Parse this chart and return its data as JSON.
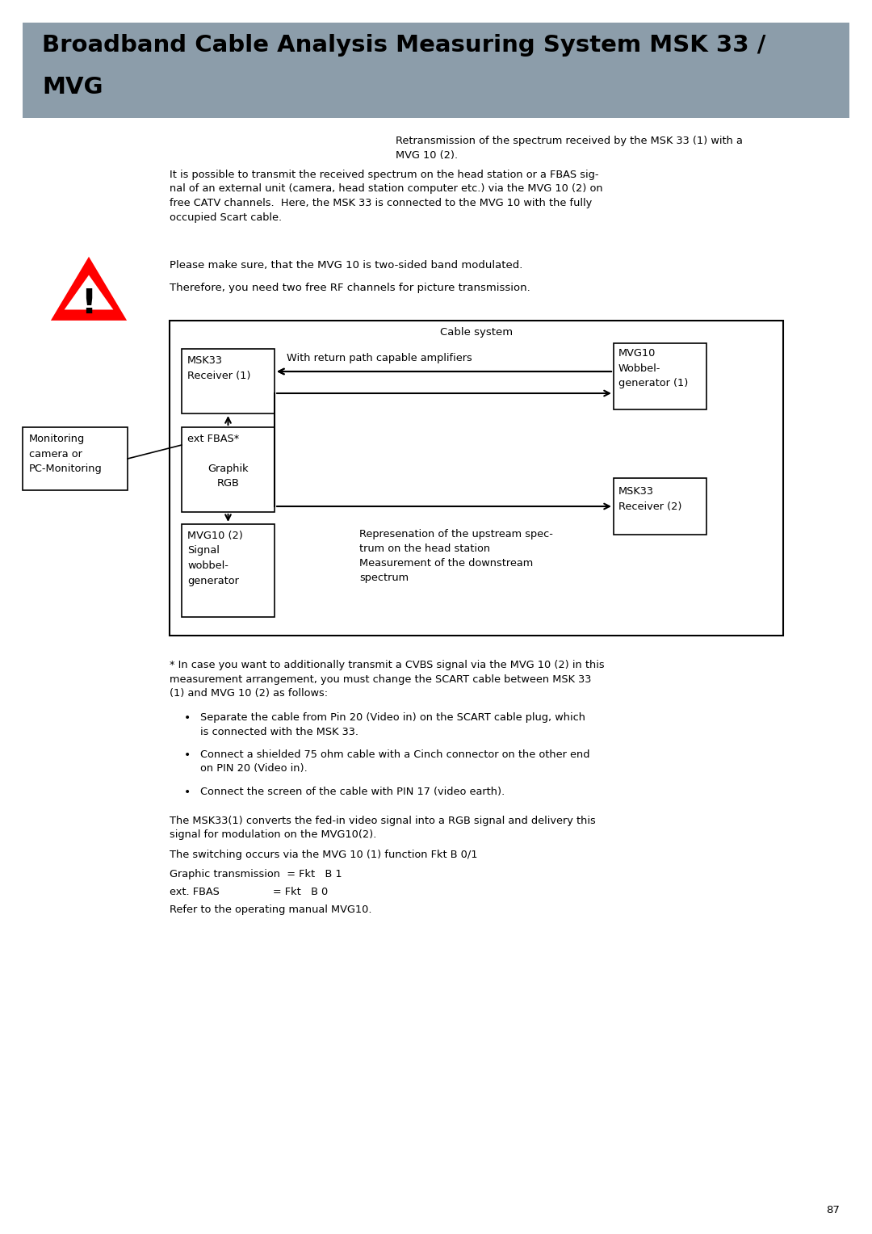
{
  "title_line1": "Broadband Cable Analysis Measuring System MSK 33 /",
  "title_line2": "MVG",
  "title_bg": "#8c9daa",
  "page_bg": "#ffffff",
  "para1": "Retransmission of the spectrum received by the MSK 33 (1) with a\nMVG 10 (2).",
  "para2": "It is possible to transmit the received spectrum on the head station or a FBAS sig-\nnal of an external unit (camera, head station computer etc.) via the MVG 10 (2) on\nfree CATV channels.  Here, the MSK 33 is connected to the MVG 10 with the fully\noccupied Scart cable.",
  "warning_text1": "Please make sure, that the MVG 10 is two-sided band modulated.",
  "warning_text2": "Therefore, you need two free RF channels for picture transmission.",
  "diagram_title": "Cable system",
  "diagram_subtitle": "With return path capable amplifiers",
  "box_msk33_1": "MSK33\nReceiver (1)",
  "box_mvg10_1": "MVG10\nWobbel-\ngenerator (1)",
  "box_ext_fbas": "ext FBAS*",
  "box_graphik": "Graphik\nRGB",
  "box_mvg10_2": "MVG10 (2)\nSignal\nwobbel-\ngenerator",
  "box_msk33_2": "MSK33\nReceiver (2)",
  "box_monitoring": "Monitoring\ncamera or\nPC-Monitoring",
  "diagram_note": "Represenation of the upstream spec-\ntrum on the head station\nMeasurement of the downstream\nspectrum",
  "footnote": "* In case you want to additionally transmit a CVBS signal via the MVG 10 (2) in this\nmeasurement arrangement, you must change the SCART cable between MSK 33\n(1) and MVG 10 (2) as follows:",
  "bullet1": "Separate the cable from Pin 20 (Video in) on the SCART cable plug, which\nis connected with the MSK 33.",
  "bullet2": "Connect a shielded 75 ohm cable with a Cinch connector on the other end\non PIN 20 (Video in).",
  "bullet3": "Connect the screen of the cable with PIN 17 (video earth).",
  "para_bottom1": "The MSK33(1) converts the fed-in video signal into a RGB signal and delivery this\nsignal for modulation on the MVG10(2).",
  "para_bottom2": "The switching occurs via the MVG 10 (1) function Fkt B 0/1",
  "para_bottom3": "Graphic transmission  = Fkt   B 1",
  "para_bottom4": "ext. FBAS                = Fkt   B 0",
  "para_bottom5": "Refer to the operating manual MVG10.",
  "page_number": "87"
}
